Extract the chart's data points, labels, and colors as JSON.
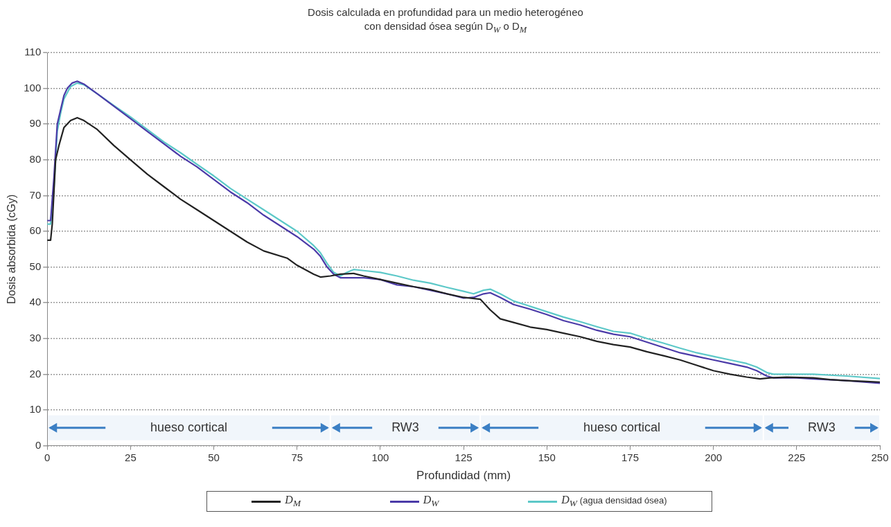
{
  "chart_data": {
    "type": "line",
    "title": "Dosis calculada en profundidad para un medio heterogéneo con densidad ósea según D$_{W}$ o D$_{M}$",
    "xlabel": "Profundidad (mm)",
    "ylabel": "Dosis absorbida (cGy)",
    "xlim": [
      0,
      250
    ],
    "xticks": [
      0,
      25,
      50,
      75,
      100,
      125,
      150,
      175,
      200,
      225,
      250
    ],
    "ylim": [
      0,
      110
    ],
    "yticks": [
      0,
      10,
      20,
      30,
      40,
      50,
      60,
      70,
      80,
      90,
      100,
      110
    ],
    "grid": "y",
    "legend": "bottom",
    "marker": "none",
    "line_style": "solid",
    "bands": [
      {
        "axis": "x",
        "from": 0,
        "to": 85,
        "label": "hueso cortical",
        "color": "#3b7fc4"
      },
      {
        "axis": "x",
        "from": 85,
        "to": 130,
        "label": "RW3",
        "color": "#3b7fc4"
      },
      {
        "axis": "x",
        "from": 130,
        "to": 215,
        "label": "hueso cortical",
        "color": "#3b7fc4"
      },
      {
        "axis": "x",
        "from": 215,
        "to": 250,
        "label": "RW3",
        "color": "#3b7fc4"
      }
    ],
    "series": [
      {
        "name": "D$_{M}$",
        "color": "#222222",
        "x": [
          0,
          1,
          1.5,
          2.5,
          3.5,
          5,
          7,
          9,
          11,
          15,
          20,
          25,
          30,
          35,
          40,
          45,
          50,
          55,
          60,
          65,
          72,
          75,
          80,
          82,
          85,
          88,
          92,
          95,
          100,
          105,
          110,
          115,
          120,
          125,
          130,
          133,
          136,
          140,
          145,
          150,
          155,
          160,
          165,
          170,
          175,
          180,
          185,
          190,
          195,
          200,
          205,
          210,
          214,
          217,
          222,
          230,
          235,
          240,
          245,
          250
        ],
        "values": [
          57.5,
          57.5,
          62,
          80,
          84,
          89,
          91,
          91.8,
          91,
          88.5,
          84,
          80,
          76,
          72.5,
          69,
          66,
          63,
          60,
          57,
          54.5,
          52.5,
          50.5,
          48,
          47.2,
          47.5,
          48,
          48.2,
          47.5,
          46.5,
          45.5,
          44.5,
          43.7,
          42.5,
          41.5,
          41,
          38,
          35.5,
          34.5,
          33.2,
          32.5,
          31.5,
          30.5,
          29.2,
          28.3,
          27.6,
          26.3,
          25.2,
          24,
          22.5,
          21,
          20,
          19.2,
          18.7,
          19,
          19.2,
          19,
          18.5,
          18.2,
          18,
          17.8
        ]
      },
      {
        "name": "D$_{W}$",
        "color": "#4b3aa8",
        "x": [
          0,
          1,
          2,
          3,
          4,
          5,
          6,
          7.5,
          9,
          11,
          15,
          20,
          25,
          30,
          35,
          40,
          45,
          50,
          55,
          60,
          65,
          70,
          75,
          80,
          82,
          84,
          86,
          88,
          90,
          95,
          100,
          105,
          110,
          115,
          120,
          125,
          128,
          131,
          133,
          136,
          140,
          145,
          150,
          155,
          160,
          165,
          170,
          175,
          180,
          185,
          190,
          195,
          200,
          205,
          210,
          213,
          216,
          218,
          225,
          230,
          240,
          250
        ],
        "values": [
          63,
          63,
          75,
          90,
          94,
          98,
          100,
          101.5,
          102,
          101.2,
          98.5,
          95,
          91.5,
          88,
          84.5,
          81,
          78,
          74.5,
          71,
          68,
          64.5,
          61.5,
          58.5,
          55,
          53,
          50,
          48,
          47,
          47,
          47,
          46.5,
          45,
          44.5,
          43.5,
          42.5,
          41.3,
          41.5,
          42.5,
          42.8,
          41.5,
          39.5,
          38.2,
          36.7,
          35,
          33.8,
          32.3,
          31.2,
          30.5,
          29,
          27.5,
          26,
          25,
          24,
          23,
          22,
          21,
          19.5,
          19,
          19,
          18.7,
          18.2,
          17.5
        ]
      },
      {
        "name": "D$_{W}$ (agua densidad ósea)",
        "color": "#5cc8c8",
        "x": [
          0,
          1,
          2,
          3,
          4,
          5,
          7,
          9,
          11,
          15,
          20,
          25,
          30,
          35,
          40,
          45,
          50,
          55,
          60,
          65,
          70,
          75,
          80,
          82,
          84,
          86,
          88,
          90,
          92,
          95,
          100,
          105,
          110,
          115,
          120,
          125,
          128,
          131,
          133,
          136,
          140,
          145,
          150,
          155,
          160,
          165,
          170,
          175,
          180,
          185,
          190,
          195,
          200,
          205,
          210,
          213,
          216,
          218,
          225,
          230,
          240,
          250
        ],
        "values": [
          62,
          62,
          72,
          88,
          93,
          97,
          100.5,
          101.5,
          101,
          98.5,
          95.2,
          92,
          88.5,
          85,
          82,
          78.7,
          75.5,
          72,
          69,
          66,
          63,
          60,
          56,
          54,
          51,
          48.5,
          47.5,
          48.5,
          49.3,
          49,
          48.5,
          47.5,
          46.3,
          45.5,
          44.3,
          43.2,
          42.5,
          43.5,
          43.8,
          42.5,
          40.5,
          39,
          37.5,
          36,
          34.7,
          33.3,
          32,
          31.5,
          30,
          28.7,
          27.3,
          26,
          25,
          24,
          23,
          22,
          20.5,
          20,
          20,
          20,
          19.5,
          18.8
        ]
      }
    ]
  }
}
